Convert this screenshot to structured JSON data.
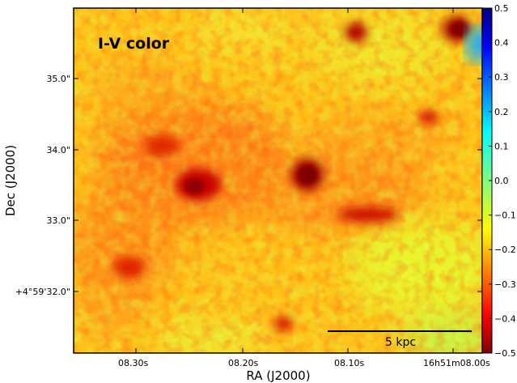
{
  "figure": {
    "annotation": "I-V color",
    "xlabel": "RA (J2000)",
    "ylabel": "Dec (J2000)",
    "x_ticks": [
      "08.30s",
      "08.20s",
      "08.10s",
      "16h51m08.00s"
    ],
    "y_ticks": [
      "35.0\"",
      "34.0\"",
      "33.0\"",
      "+4°59'32.0\""
    ],
    "scale_bar_label": "5 kpc",
    "colorbar": {
      "colormap": "jet",
      "range": [
        -0.5,
        0.5
      ],
      "ticks": [
        "0.5",
        "0.4",
        "0.3",
        "0.2",
        "0.1",
        "0.0",
        "−0.1",
        "−0.2",
        "−0.3",
        "−0.4",
        "−0.5"
      ]
    }
  }
}
